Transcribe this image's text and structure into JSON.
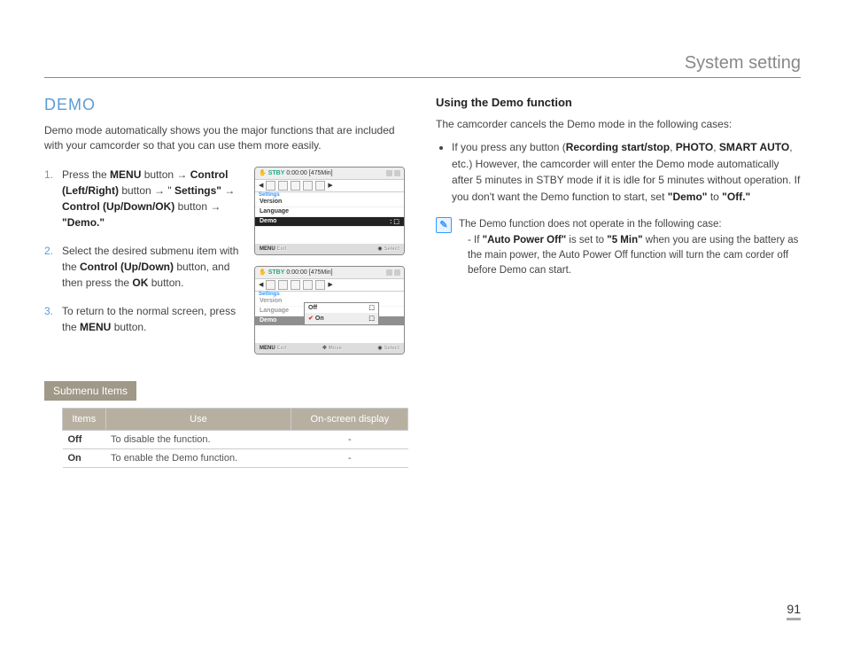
{
  "header": {
    "title": "System setting"
  },
  "left": {
    "title": "DEMO",
    "intro": "Demo mode automatically shows you the major functions that are included with your camcorder so that you can use them more easily.",
    "steps": [
      {
        "num": "1.",
        "parts": [
          "Press the ",
          "MENU",
          " button ",
          "→",
          " ",
          "Control (Left/Right)",
          " button ",
          "→",
          " \" ",
          "Settings\"",
          " ",
          "→",
          " ",
          "Control (Up/Down/OK)",
          " button ",
          "→",
          " ",
          "\"Demo.\""
        ]
      },
      {
        "num": "2.",
        "parts": [
          "Select the desired submenu item with the ",
          "Control (Up/Down)",
          " button, and then press the ",
          "OK",
          " button."
        ]
      },
      {
        "num": "3.",
        "parts": [
          "To return to the normal screen, press the ",
          "MENU",
          " button."
        ]
      }
    ],
    "screen1": {
      "stby": "STBY",
      "time": "0:00:00",
      "remain": "[475Min]",
      "settings_label": "Settings",
      "rows": [
        "Version",
        "Language",
        "Demo"
      ],
      "footer_left": "MENU",
      "footer_exit": "Exit",
      "footer_right": "Select"
    },
    "screen2": {
      "stby": "STBY",
      "time": "0:00:00",
      "remain": "[475Min]",
      "settings_label": "Settings",
      "rows": [
        "Version",
        "Language",
        "Demo"
      ],
      "popup": {
        "off": "Off",
        "on": "On"
      },
      "footer_left": "MENU",
      "footer_exit": "Exit",
      "footer_move": "Move",
      "footer_right": "Select"
    },
    "submenu_label": "Submenu Items",
    "table": {
      "headers": [
        "Items",
        "Use",
        "On-screen display"
      ],
      "rows": [
        {
          "item": "Off",
          "use": "To disable the function.",
          "disp": "-"
        },
        {
          "item": "On",
          "use": "To enable the Demo function.",
          "disp": "-"
        }
      ]
    }
  },
  "right": {
    "subhead": "Using the Demo function",
    "para1": "The camcorder cancels the Demo mode in the following cases:",
    "bullet_pre": "If you press any button (",
    "bullet_b1": "Recording start/stop",
    "bullet_sep1": ", ",
    "bullet_b2": "PHOTO",
    "bullet_sep2": ", ",
    "bullet_b3": "SMART AUTO",
    "bullet_post1": ", etc.) However, the camcorder will enter the Demo mode automatically after 5 minutes in STBY mode if it is idle for 5 minutes without operation. If you don't want the Demo function to start, set ",
    "bullet_b4": "\"Demo\"",
    "bullet_mid": " to ",
    "bullet_b5": "\"Off.\"",
    "note_intro": "The Demo function does not operate in the following case:",
    "note_li_pre": "If ",
    "note_li_b1": "\"Auto Power Off\"",
    "note_li_mid1": " is set to ",
    "note_li_b2": "\"5 Min\"",
    "note_li_post": " when you are using the battery as the main power, the Auto Power Off function will turn the cam corder off before Demo can start."
  },
  "page": "91"
}
